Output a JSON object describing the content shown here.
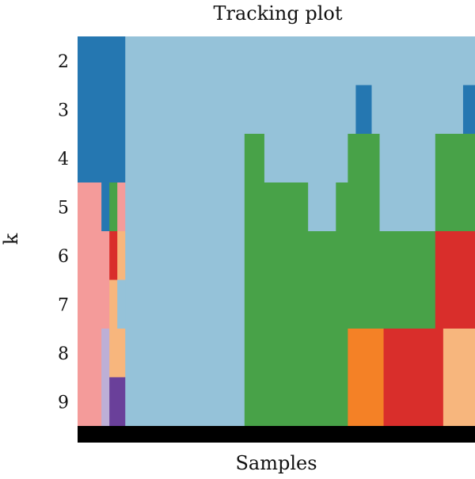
{
  "chart_data": {
    "type": "heatmap",
    "title": "Tracking plot",
    "xlabel": "Samples",
    "ylabel": "k",
    "rows": [
      "2",
      "3",
      "4",
      "5",
      "6",
      "7",
      "8",
      "9"
    ],
    "n_samples": 100,
    "colors": {
      "A": "#95c2d9",
      "B": "#2577b1",
      "C": "#48a248",
      "D": "#d92e2b",
      "E": "#f48126",
      "F": "#f7b67d",
      "G": "#f49b9a",
      "H": "#bdafd6",
      "I": "#6a409a",
      "J": "#b0dc8d"
    },
    "cluster_bar_color": "#000000",
    "grid": false,
    "legend": "none",
    "segments": {
      "2": [
        [
          "B",
          0,
          12
        ],
        [
          "A",
          12,
          100
        ]
      ],
      "3": [
        [
          "B",
          0,
          12
        ],
        [
          "A",
          12,
          70
        ],
        [
          "B",
          70,
          74
        ],
        [
          "A",
          74,
          97
        ],
        [
          "B",
          97,
          100
        ]
      ],
      "4": [
        [
          "B",
          0,
          12
        ],
        [
          "A",
          12,
          42
        ],
        [
          "C",
          42,
          47
        ],
        [
          "A",
          47,
          68
        ],
        [
          "C",
          68,
          76
        ],
        [
          "A",
          76,
          90
        ],
        [
          "C",
          90,
          100
        ]
      ],
      "5": [
        [
          "G",
          0,
          6
        ],
        [
          "B",
          6,
          8
        ],
        [
          "C",
          8,
          10
        ],
        [
          "G",
          10,
          12
        ],
        [
          "A",
          12,
          42
        ],
        [
          "C",
          42,
          58
        ],
        [
          "A",
          58,
          65
        ],
        [
          "C",
          65,
          76
        ],
        [
          "A",
          76,
          90
        ],
        [
          "C",
          90,
          100
        ]
      ],
      "6": [
        [
          "G",
          0,
          8
        ],
        [
          "D",
          8,
          10
        ],
        [
          "F",
          10,
          12
        ],
        [
          "A",
          12,
          42
        ],
        [
          "C",
          42,
          90
        ],
        [
          "D",
          90,
          100
        ]
      ],
      "7": [
        [
          "G",
          0,
          8
        ],
        [
          "F",
          8,
          10
        ],
        [
          "A",
          10,
          12
        ],
        [
          "A",
          12,
          42
        ],
        [
          "C",
          42,
          90
        ],
        [
          "D",
          90,
          100
        ]
      ],
      "8": [
        [
          "G",
          0,
          6
        ],
        [
          "H",
          6,
          8
        ],
        [
          "F",
          8,
          12
        ],
        [
          "A",
          12,
          42
        ],
        [
          "C",
          42,
          68
        ],
        [
          "E",
          68,
          77
        ],
        [
          "D",
          77,
          92
        ],
        [
          "F",
          92,
          100
        ]
      ],
      "9": [
        [
          "G",
          0,
          6
        ],
        [
          "H",
          6,
          8
        ],
        [
          "I",
          8,
          12
        ],
        [
          "A",
          12,
          42
        ],
        [
          "C",
          42,
          68
        ],
        [
          "E",
          68,
          77
        ],
        [
          "D",
          77,
          92
        ],
        [
          "F",
          92,
          100
        ]
      ]
    }
  }
}
